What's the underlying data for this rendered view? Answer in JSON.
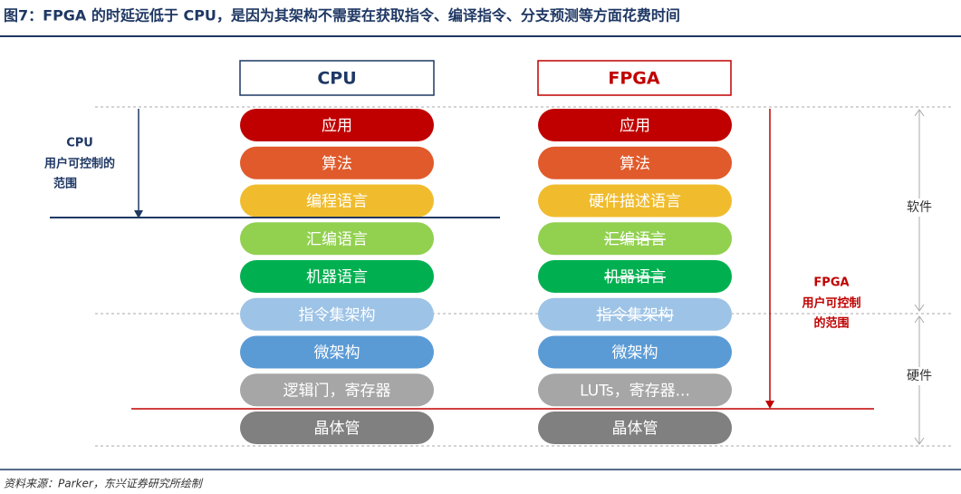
{
  "header": {
    "title": "图7：FPGA 的时延远低于 CPU，是因为其架构不需要在获取指令、编译指令、分支预测等方面花费时间"
  },
  "columns": [
    {
      "title": "CPU",
      "layers": [
        {
          "label": "应用"
        },
        {
          "label": "算法"
        },
        {
          "label": "编程语言"
        },
        {
          "label": "汇编语言"
        },
        {
          "label": "机器语言"
        },
        {
          "label": "指令集架构"
        },
        {
          "label": "微架构"
        },
        {
          "label": "逻辑门，寄存器"
        },
        {
          "label": "晶体管"
        }
      ]
    },
    {
      "title": "FPGA",
      "layers": [
        {
          "label": "应用"
        },
        {
          "label": "算法"
        },
        {
          "label": "硬件描述语言"
        },
        {
          "label": "汇编语言",
          "strikethrough": true
        },
        {
          "label": "机器语言",
          "strikethrough": true
        },
        {
          "label": "指令集架构",
          "strikethrough": true
        },
        {
          "label": "微架构"
        },
        {
          "label": "LUTs，寄存器..."
        },
        {
          "label": "晶体管"
        }
      ]
    }
  ],
  "annotations": {
    "cpu_scope": [
      "CPU",
      "用户可控制的",
      "范围"
    ],
    "fpga_scope": [
      "FPGA",
      "用户可控制",
      "的范围"
    ],
    "software": "软件",
    "hardware": "硬件"
  },
  "footer": {
    "source": "资料来源：Parker，东兴证券研究所绘制"
  }
}
